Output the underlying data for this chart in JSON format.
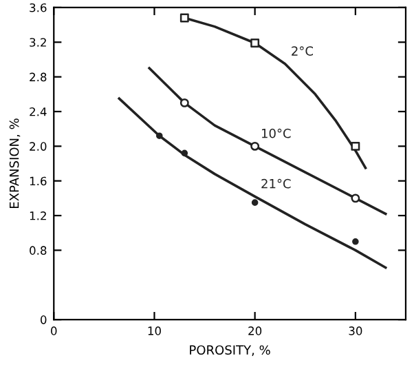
{
  "chart_data": {
    "type": "scatter",
    "xlabel": "POROSITY, %",
    "ylabel": "EXPANSION, %",
    "xlim": [
      0,
      35
    ],
    "ylim": [
      0,
      3.6
    ],
    "xticks": [
      0,
      10,
      20,
      30
    ],
    "yticks": [
      0,
      0.8,
      1.2,
      1.6,
      {
        "value": 2.0,
        "label": "2.0"
      },
      2.4,
      2.8,
      3.2,
      3.6
    ],
    "grid": false,
    "legend": false,
    "series": [
      {
        "type": "line",
        "name": "2°C",
        "color": "#222222",
        "marker": "none",
        "x": [
          13,
          16,
          20,
          23,
          26,
          28,
          30,
          31
        ],
        "values": [
          3.48,
          3.38,
          3.19,
          2.95,
          2.6,
          2.3,
          1.95,
          1.75
        ]
      },
      {
        "color": "#222222",
        "marker": "square",
        "x": [
          13,
          20,
          30
        ],
        "values": [
          3.48,
          3.19,
          2.0
        ]
      },
      {
        "type": "line",
        "name": "10°C",
        "color": "#222222",
        "marker": "none",
        "x": [
          9.5,
          13,
          16,
          20,
          25,
          30,
          33
        ],
        "values": [
          2.9,
          2.5,
          2.24,
          2.0,
          1.7,
          1.4,
          1.22
        ]
      },
      {
        "color": "#222222",
        "marker": "circle",
        "x": [
          13,
          20,
          30
        ],
        "values": [
          2.5,
          2.0,
          1.4
        ]
      },
      {
        "type": "line",
        "name": "21°C",
        "color": "#222222",
        "marker": "none",
        "x": [
          6.5,
          10.5,
          13,
          16,
          20,
          25,
          30,
          33
        ],
        "values": [
          2.55,
          2.12,
          1.9,
          1.68,
          1.42,
          1.1,
          0.8,
          0.6
        ]
      },
      {
        "color": "#222222",
        "marker": "dot",
        "x": [
          10.5,
          13,
          20,
          30
        ],
        "values": [
          2.12,
          1.92,
          1.35,
          0.9
        ]
      }
    ]
  }
}
